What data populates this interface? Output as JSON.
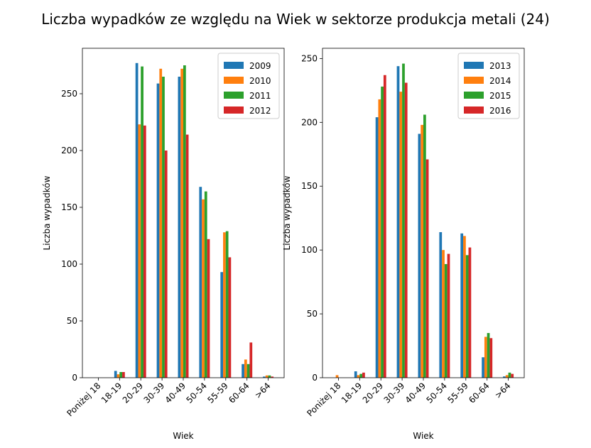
{
  "title": "Liczba wypadków ze względu na Wiek w sektorze produkcja metali (24)",
  "colors": [
    "#1f77b4",
    "#ff7f0e",
    "#2ca02c",
    "#d62728"
  ],
  "chart_data": [
    {
      "type": "bar",
      "xlabel": "Wiek",
      "ylabel": "Liczba wypadków",
      "categories": [
        "Poniżej 18",
        "18-19",
        "20-29",
        "30-39",
        "40-49",
        "50-54",
        "55-59",
        "60-64",
        ">64"
      ],
      "ylim": [
        0,
        290
      ],
      "yticks": [
        0,
        50,
        100,
        150,
        200,
        250
      ],
      "legend_position": "top-right",
      "series": [
        {
          "name": "2009",
          "values": [
            0,
            6,
            277,
            259,
            265,
            168,
            93,
            12,
            1
          ]
        },
        {
          "name": "2010",
          "values": [
            0,
            3,
            223,
            272,
            272,
            157,
            128,
            16,
            2
          ]
        },
        {
          "name": "2011",
          "values": [
            0,
            5,
            274,
            265,
            275,
            164,
            129,
            12,
            2
          ]
        },
        {
          "name": "2012",
          "values": [
            0,
            5,
            222,
            200,
            214,
            122,
            106,
            31,
            1
          ]
        }
      ]
    },
    {
      "type": "bar",
      "xlabel": "Wiek",
      "ylabel": "Liczba wypadków",
      "categories": [
        "Poniżej 18",
        "18-19",
        "20-29",
        "30-39",
        "40-49",
        "50-54",
        "55-59",
        "60-64",
        ">64"
      ],
      "ylim": [
        0,
        258
      ],
      "yticks": [
        0,
        50,
        100,
        150,
        200,
        250
      ],
      "legend_position": "top-right",
      "series": [
        {
          "name": "2013",
          "values": [
            0,
            5,
            204,
            244,
            191,
            114,
            113,
            16,
            1
          ]
        },
        {
          "name": "2014",
          "values": [
            2,
            2,
            218,
            224,
            198,
            100,
            111,
            32,
            2
          ]
        },
        {
          "name": "2015",
          "values": [
            0,
            3,
            228,
            246,
            206,
            89,
            96,
            35,
            4
          ]
        },
        {
          "name": "2016",
          "values": [
            0,
            4,
            237,
            231,
            171,
            97,
            102,
            31,
            3
          ]
        }
      ]
    }
  ]
}
